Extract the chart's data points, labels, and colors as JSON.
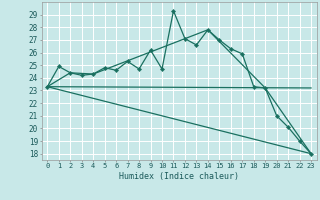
{
  "background_color": "#c8e8e8",
  "grid_color": "#ffffff",
  "line_color": "#1a7060",
  "xlabel": "Humidex (Indice chaleur)",
  "ylim": [
    17.5,
    30.0
  ],
  "xlim": [
    -0.5,
    23.5
  ],
  "yticks": [
    18,
    19,
    20,
    21,
    22,
    23,
    24,
    25,
    26,
    27,
    28,
    29
  ],
  "xticks": [
    0,
    1,
    2,
    3,
    4,
    5,
    6,
    7,
    8,
    9,
    10,
    11,
    12,
    13,
    14,
    15,
    16,
    17,
    18,
    19,
    20,
    21,
    22,
    23
  ],
  "main_x": [
    0,
    1,
    2,
    3,
    4,
    5,
    6,
    7,
    8,
    9,
    10,
    11,
    12,
    13,
    14,
    15,
    16,
    17,
    18,
    19,
    20,
    21,
    22,
    23
  ],
  "main_y": [
    23.3,
    24.9,
    24.4,
    24.2,
    24.3,
    24.8,
    24.6,
    25.3,
    24.7,
    26.2,
    24.7,
    29.3,
    27.1,
    26.6,
    27.8,
    27.0,
    26.3,
    25.9,
    23.3,
    23.2,
    21.0,
    20.1,
    19.0,
    18.0
  ],
  "line2_x": [
    0,
    23
  ],
  "line2_y": [
    23.3,
    23.2
  ],
  "line3_x": [
    0,
    23
  ],
  "line3_y": [
    23.3,
    18.0
  ],
  "line4_x": [
    0,
    2,
    4,
    14,
    19,
    23
  ],
  "line4_y": [
    23.3,
    24.4,
    24.3,
    27.8,
    23.2,
    18.0
  ],
  "figsize": [
    3.2,
    2.0
  ],
  "dpi": 100
}
